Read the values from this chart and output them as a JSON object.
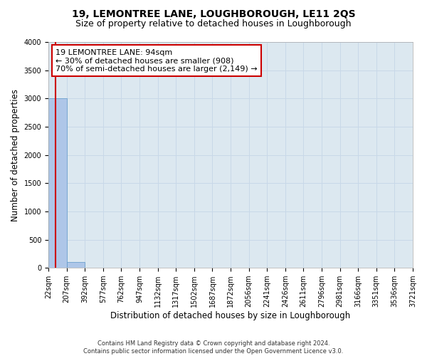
{
  "title": "19, LEMONTREE LANE, LOUGHBOROUGH, LE11 2QS",
  "subtitle": "Size of property relative to detached houses in Loughborough",
  "xlabel": "Distribution of detached houses by size in Loughborough",
  "ylabel": "Number of detached properties",
  "footer_line1": "Contains HM Land Registry data © Crown copyright and database right 2024.",
  "footer_line2": "Contains public sector information licensed under the Open Government Licence v3.0.",
  "bin_edges": [
    22,
    207,
    392,
    577,
    762,
    947,
    1132,
    1317,
    1502,
    1687,
    1872,
    2056,
    2241,
    2426,
    2611,
    2796,
    2981,
    3166,
    3351,
    3536,
    3721
  ],
  "bin_labels": [
    "22sqm",
    "207sqm",
    "392sqm",
    "577sqm",
    "762sqm",
    "947sqm",
    "1132sqm",
    "1317sqm",
    "1502sqm",
    "1687sqm",
    "1872sqm",
    "2056sqm",
    "2241sqm",
    "2426sqm",
    "2611sqm",
    "2796sqm",
    "2981sqm",
    "3166sqm",
    "3351sqm",
    "3536sqm",
    "3721sqm"
  ],
  "bar_values": [
    3000,
    100,
    0,
    0,
    0,
    0,
    0,
    0,
    0,
    0,
    0,
    0,
    0,
    0,
    0,
    0,
    0,
    0,
    0,
    0
  ],
  "bar_color": "#aec6e8",
  "bar_edge_color": "#5a96c8",
  "property_sqm": 94,
  "annotation_line1": "19 LEMONTREE LANE: 94sqm",
  "annotation_line2": "← 30% of detached houses are smaller (908)",
  "annotation_line3": "70% of semi-detached houses are larger (2,149) →",
  "vline_color": "#cc0000",
  "annotation_box_edgecolor": "#cc0000",
  "ylim": [
    0,
    4000
  ],
  "yticks": [
    0,
    500,
    1000,
    1500,
    2000,
    2500,
    3000,
    3500,
    4000
  ],
  "grid_color": "#c8d8e8",
  "bg_color": "#dce8f0",
  "title_fontsize": 10,
  "subtitle_fontsize": 9,
  "tick_fontsize": 7,
  "xlabel_fontsize": 8.5,
  "ylabel_fontsize": 8.5,
  "annotation_fontsize": 8,
  "footer_fontsize": 6
}
